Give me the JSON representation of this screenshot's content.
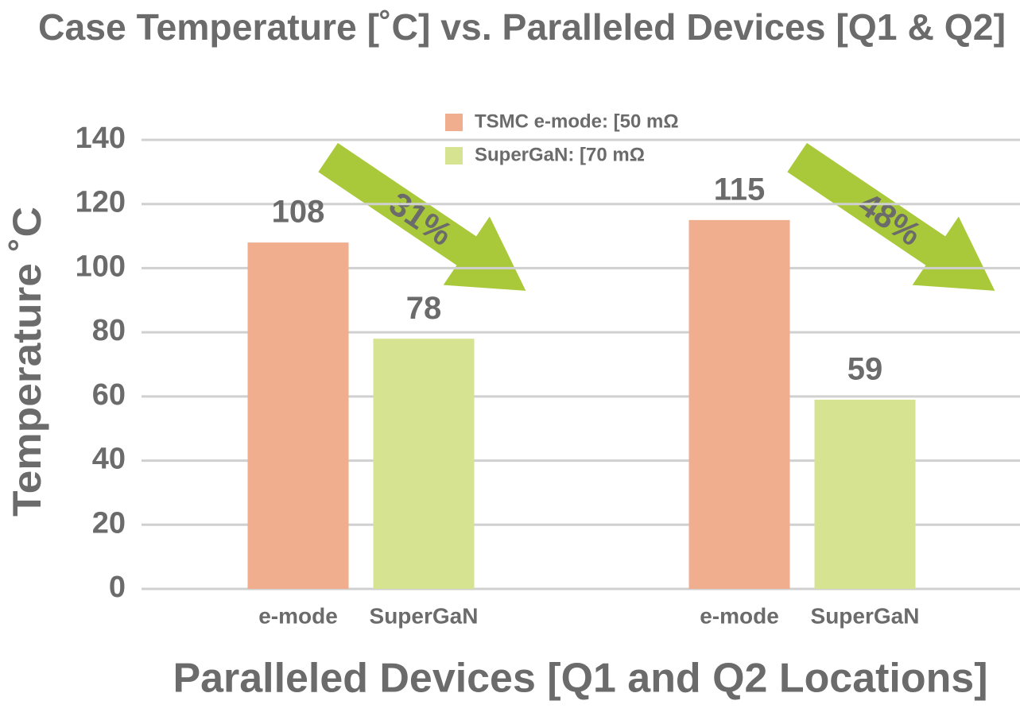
{
  "chart_data": {
    "type": "bar",
    "title": "Case Temperature [˚C] vs. Paralleled Devices [Q1 & Q2]",
    "y_label": "Temperature ˚C",
    "x_label": "Paralleled Devices [Q1 and Q2 Locations]",
    "categories": [
      "e-mode",
      "SuperGaN",
      "e-mode",
      "SuperGaN"
    ],
    "series": [
      {
        "name": "TSMC e-mode: [50 mΩ",
        "color": "#f0ae8e",
        "values": [
          108,
          null,
          115,
          null
        ]
      },
      {
        "name": "SuperGaN: [70 mΩ",
        "color": "#d6e390",
        "values": [
          null,
          78,
          null,
          59
        ]
      }
    ],
    "ylim": [
      0,
      140
    ],
    "yticks": [
      0,
      20,
      40,
      60,
      80,
      100,
      120,
      140
    ],
    "grid": true,
    "annotations": [
      {
        "text": "31%"
      },
      {
        "text": "48%"
      }
    ]
  }
}
